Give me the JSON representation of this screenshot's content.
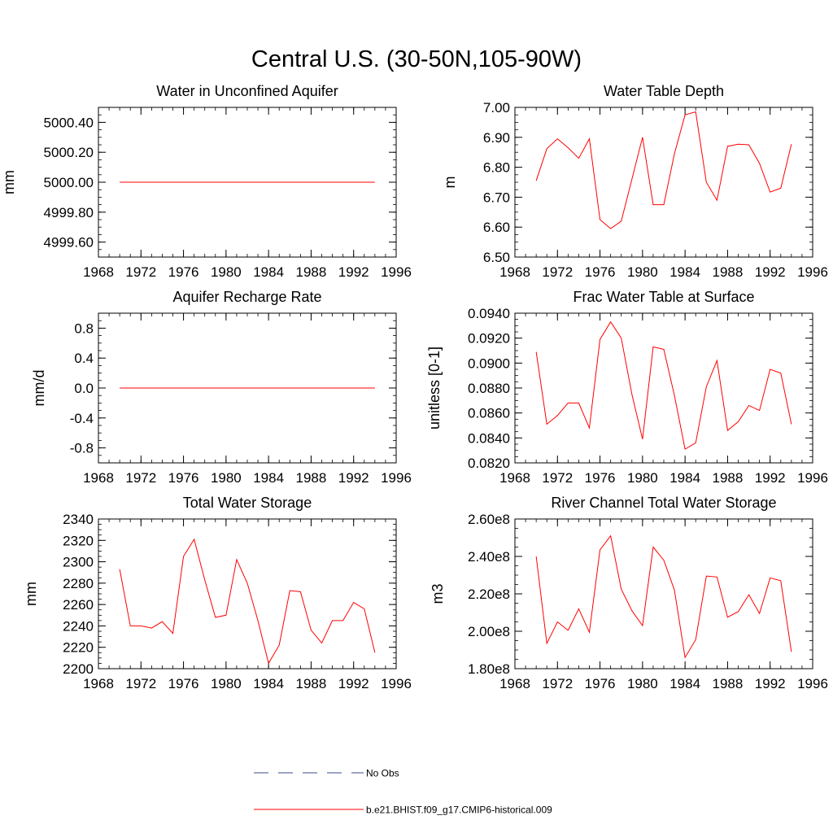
{
  "title": "Central U.S. (30-50N,105-90W)",
  "legend": [
    {
      "label": "No Obs",
      "color": "#3b4a8c",
      "dash": true
    },
    {
      "label": "b.e21.BHIST.f09_g17.CMIP6-historical.009",
      "color": "#ff0000",
      "dash": false
    }
  ],
  "chart_data": [
    {
      "type": "line",
      "title": "Water in Unconfined Aquifer",
      "ylabel": "mm",
      "xlim": [
        1968,
        1996
      ],
      "ylim": [
        4999.5,
        5000.5
      ],
      "xticks": [
        1968,
        1972,
        1976,
        1980,
        1984,
        1988,
        1992,
        1996
      ],
      "xtick_labels": [
        "1968",
        "1972",
        "1976",
        "1980",
        "1984",
        "1988",
        "1992",
        "1996"
      ],
      "yticks": [
        4999.6,
        4999.8,
        5000.0,
        5000.2,
        5000.4
      ],
      "ytick_labels": [
        "4999.60",
        "4999.80",
        "5000.00",
        "5000.20",
        "5000.40"
      ],
      "color": "#ff0000",
      "x": [
        1970,
        1971,
        1972,
        1973,
        1974,
        1975,
        1976,
        1977,
        1978,
        1979,
        1980,
        1981,
        1982,
        1983,
        1984,
        1985,
        1986,
        1987,
        1988,
        1989,
        1990,
        1991,
        1992,
        1993,
        1994
      ],
      "y": [
        5000,
        5000,
        5000,
        5000,
        5000,
        5000,
        5000,
        5000,
        5000,
        5000,
        5000,
        5000,
        5000,
        5000,
        5000,
        5000,
        5000,
        5000,
        5000,
        5000,
        5000,
        5000,
        5000,
        5000,
        5000
      ]
    },
    {
      "type": "line",
      "title": "Water Table Depth",
      "ylabel": "m",
      "xlim": [
        1968,
        1996
      ],
      "ylim": [
        6.5,
        7.0
      ],
      "xticks": [
        1968,
        1972,
        1976,
        1980,
        1984,
        1988,
        1992,
        1996
      ],
      "xtick_labels": [
        "1968",
        "1972",
        "1976",
        "1980",
        "1984",
        "1988",
        "1992",
        "1996"
      ],
      "yticks": [
        6.5,
        6.6,
        6.7,
        6.8,
        6.9,
        7.0
      ],
      "ytick_labels": [
        "6.50",
        "6.60",
        "6.70",
        "6.80",
        "6.90",
        "7.00"
      ],
      "color": "#ff0000",
      "x": [
        1970,
        1971,
        1972,
        1973,
        1974,
        1975,
        1976,
        1977,
        1978,
        1979,
        1980,
        1981,
        1982,
        1983,
        1984,
        1985,
        1986,
        1987,
        1988,
        1989,
        1990,
        1991,
        1992,
        1993,
        1994
      ],
      "y": [
        6.755,
        6.862,
        6.895,
        6.865,
        6.83,
        6.895,
        6.625,
        6.595,
        6.62,
        6.76,
        6.9,
        6.675,
        6.675,
        6.845,
        6.975,
        6.985,
        6.75,
        6.69,
        6.87,
        6.877,
        6.875,
        6.813,
        6.717,
        6.73,
        6.877
      ]
    },
    {
      "type": "line",
      "title": "Aquifer Recharge Rate",
      "ylabel": "mm/d",
      "xlim": [
        1968,
        1996
      ],
      "ylim": [
        -1.0,
        1.0
      ],
      "xticks": [
        1968,
        1972,
        1976,
        1980,
        1984,
        1988,
        1992,
        1996
      ],
      "xtick_labels": [
        "1968",
        "1972",
        "1976",
        "1980",
        "1984",
        "1988",
        "1992",
        "1996"
      ],
      "yticks": [
        -0.8,
        -0.4,
        0.0,
        0.4,
        0.8
      ],
      "ytick_labels": [
        "-0.8",
        "-0.4",
        "0.0",
        "0.4",
        "0.8"
      ],
      "color": "#ff0000",
      "x": [
        1970,
        1971,
        1972,
        1973,
        1974,
        1975,
        1976,
        1977,
        1978,
        1979,
        1980,
        1981,
        1982,
        1983,
        1984,
        1985,
        1986,
        1987,
        1988,
        1989,
        1990,
        1991,
        1992,
        1993,
        1994
      ],
      "y": [
        0,
        0,
        0,
        0,
        0,
        0,
        0,
        0,
        0,
        0,
        0,
        0,
        0,
        0,
        0,
        0,
        0,
        0,
        0,
        0,
        0,
        0,
        0,
        0,
        0
      ]
    },
    {
      "type": "line",
      "title": "Frac Water Table at Surface",
      "ylabel": "unitless [0-1]",
      "xlim": [
        1968,
        1996
      ],
      "ylim": [
        0.082,
        0.094
      ],
      "xticks": [
        1968,
        1972,
        1976,
        1980,
        1984,
        1988,
        1992,
        1996
      ],
      "xtick_labels": [
        "1968",
        "1972",
        "1976",
        "1980",
        "1984",
        "1988",
        "1992",
        "1996"
      ],
      "yticks": [
        0.082,
        0.084,
        0.086,
        0.088,
        0.09,
        0.092,
        0.094
      ],
      "ytick_labels": [
        "0.0820",
        "0.0840",
        "0.0860",
        "0.0880",
        "0.0900",
        "0.0920",
        "0.0940"
      ],
      "color": "#ff0000",
      "x": [
        1970,
        1971,
        1972,
        1973,
        1974,
        1975,
        1976,
        1977,
        1978,
        1979,
        1980,
        1981,
        1982,
        1983,
        1984,
        1985,
        1986,
        1987,
        1988,
        1989,
        1990,
        1991,
        1992,
        1993,
        1994
      ],
      "y": [
        0.0909,
        0.0851,
        0.0858,
        0.0868,
        0.0868,
        0.0848,
        0.0919,
        0.0933,
        0.092,
        0.0875,
        0.0839,
        0.0913,
        0.0911,
        0.0874,
        0.0831,
        0.0836,
        0.0881,
        0.0902,
        0.0846,
        0.0853,
        0.0866,
        0.0862,
        0.0895,
        0.0892,
        0.0851
      ]
    },
    {
      "type": "line",
      "title": "Total Water Storage",
      "ylabel": "mm",
      "xlim": [
        1968,
        1996
      ],
      "ylim": [
        2200,
        2340
      ],
      "xticks": [
        1968,
        1972,
        1976,
        1980,
        1984,
        1988,
        1992,
        1996
      ],
      "xtick_labels": [
        "1968",
        "1972",
        "1976",
        "1980",
        "1984",
        "1988",
        "1992",
        "1996"
      ],
      "yticks": [
        2200,
        2220,
        2240,
        2260,
        2280,
        2300,
        2320,
        2340
      ],
      "ytick_labels": [
        "2200",
        "2220",
        "2240",
        "2260",
        "2280",
        "2300",
        "2320",
        "2340"
      ],
      "color": "#ff0000",
      "x": [
        1970,
        1971,
        1972,
        1973,
        1974,
        1975,
        1976,
        1977,
        1978,
        1979,
        1980,
        1981,
        1982,
        1983,
        1984,
        1985,
        1986,
        1987,
        1988,
        1989,
        1990,
        1991,
        1992,
        1993,
        1994
      ],
      "y": [
        2293,
        2240,
        2240,
        2238,
        2244,
        2233,
        2305,
        2321,
        2283,
        2248,
        2250,
        2302,
        2280,
        2245,
        2205,
        2222,
        2273,
        2272,
        2236,
        2224,
        2245,
        2245,
        2262,
        2256,
        2215
      ]
    },
    {
      "type": "line",
      "title": "River Channel Total Water Storage",
      "ylabel": "m3",
      "xlim": [
        1968,
        1996
      ],
      "ylim": [
        180000000,
        260000000
      ],
      "xticks": [
        1968,
        1972,
        1976,
        1980,
        1984,
        1988,
        1992,
        1996
      ],
      "xtick_labels": [
        "1968",
        "1972",
        "1976",
        "1980",
        "1984",
        "1988",
        "1992",
        "1996"
      ],
      "yticks": [
        180000000,
        200000000,
        220000000,
        240000000,
        260000000
      ],
      "ytick_labels": [
        "1.80e8",
        "2.00e8",
        "2.20e8",
        "2.40e8",
        "2.60e8"
      ],
      "color": "#ff0000",
      "x": [
        1970,
        1971,
        1972,
        1973,
        1974,
        1975,
        1976,
        1977,
        1978,
        1979,
        1980,
        1981,
        1982,
        1983,
        1984,
        1985,
        1986,
        1987,
        1988,
        1989,
        1990,
        1991,
        1992,
        1993,
        1994
      ],
      "y": [
        240000000,
        193500000,
        205000000,
        200500000,
        212000000,
        199500000,
        243500000,
        251000000,
        222500000,
        211000000,
        203000000,
        245000000,
        238000000,
        222000000,
        186000000,
        195500000,
        229500000,
        229000000,
        207500000,
        210500000,
        219500000,
        209500000,
        228500000,
        227000000,
        189000000
      ]
    }
  ]
}
